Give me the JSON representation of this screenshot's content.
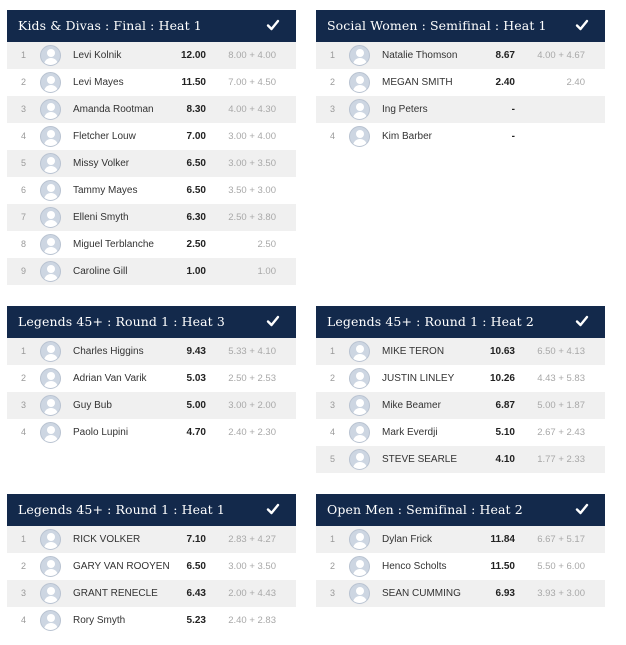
{
  "heats": [
    {
      "title": "Kids & Divas : Final : Heat 1",
      "rows": [
        {
          "pos": "1",
          "name": "Levi Kolnik",
          "score": "12.00",
          "detail": "8.00 + 4.00"
        },
        {
          "pos": "2",
          "name": "Levi Mayes",
          "score": "11.50",
          "detail": "7.00 + 4.50"
        },
        {
          "pos": "3",
          "name": "Amanda Rootman",
          "score": "8.30",
          "detail": "4.00 + 4.30"
        },
        {
          "pos": "4",
          "name": "Fletcher Louw",
          "score": "7.00",
          "detail": "3.00 + 4.00"
        },
        {
          "pos": "5",
          "name": "Missy Volker",
          "score": "6.50",
          "detail": "3.00 + 3.50"
        },
        {
          "pos": "6",
          "name": "Tammy Mayes",
          "score": "6.50",
          "detail": "3.50 + 3.00"
        },
        {
          "pos": "7",
          "name": "Elleni Smyth",
          "score": "6.30",
          "detail": "2.50 + 3.80"
        },
        {
          "pos": "8",
          "name": "Miguel Terblanche",
          "score": "2.50",
          "detail": "2.50"
        },
        {
          "pos": "9",
          "name": "Caroline Gill",
          "score": "1.00",
          "detail": "1.00"
        }
      ]
    },
    {
      "title": "Social Women : Semifinal : Heat 1",
      "rows": [
        {
          "pos": "1",
          "name": "Natalie Thomson",
          "score": "8.67",
          "detail": "4.00 + 4.67"
        },
        {
          "pos": "2",
          "name": "MEGAN SMITH",
          "score": "2.40",
          "detail": "2.40"
        },
        {
          "pos": "3",
          "name": "Ing Peters",
          "score": "-",
          "detail": ""
        },
        {
          "pos": "4",
          "name": "Kim Barber",
          "score": "-",
          "detail": ""
        }
      ]
    },
    {
      "title": "Legends 45+ : Round 1 : Heat 3",
      "rows": [
        {
          "pos": "1",
          "name": "Charles Higgins",
          "score": "9.43",
          "detail": "5.33 + 4.10"
        },
        {
          "pos": "2",
          "name": "Adrian Van Varik",
          "score": "5.03",
          "detail": "2.50 + 2.53"
        },
        {
          "pos": "3",
          "name": "Guy Bub",
          "score": "5.00",
          "detail": "3.00 + 2.00"
        },
        {
          "pos": "4",
          "name": "Paolo Lupini",
          "score": "4.70",
          "detail": "2.40 + 2.30"
        }
      ]
    },
    {
      "title": "Legends 45+ : Round 1 : Heat 2",
      "rows": [
        {
          "pos": "1",
          "name": "MIKE TERON",
          "score": "10.63",
          "detail": "6.50 + 4.13"
        },
        {
          "pos": "2",
          "name": "JUSTIN LINLEY",
          "score": "10.26",
          "detail": "4.43 + 5.83"
        },
        {
          "pos": "3",
          "name": "Mike Beamer",
          "score": "6.87",
          "detail": "5.00 + 1.87"
        },
        {
          "pos": "4",
          "name": "Mark Everdji",
          "score": "5.10",
          "detail": "2.67 + 2.43"
        },
        {
          "pos": "5",
          "name": "STEVE SEARLE",
          "score": "4.10",
          "detail": "1.77 + 2.33"
        }
      ]
    },
    {
      "title": "Legends 45+ : Round 1 : Heat 1",
      "rows": [
        {
          "pos": "1",
          "name": "RICK VOLKER",
          "score": "7.10",
          "detail": "2.83 + 4.27"
        },
        {
          "pos": "2",
          "name": "GARY VAN ROOYEN",
          "score": "6.50",
          "detail": "3.00 + 3.50"
        },
        {
          "pos": "3",
          "name": "GRANT RENECLE",
          "score": "6.43",
          "detail": "2.00 + 4.43"
        },
        {
          "pos": "4",
          "name": "Rory Smyth",
          "score": "5.23",
          "detail": "2.40 + 2.83"
        }
      ]
    },
    {
      "title": "Open Men : Semifinal : Heat 2",
      "rows": [
        {
          "pos": "1",
          "name": "Dylan Frick",
          "score": "11.84",
          "detail": "6.67 + 5.17"
        },
        {
          "pos": "2",
          "name": "Henco Scholts",
          "score": "11.50",
          "detail": "5.50 + 6.00"
        },
        {
          "pos": "3",
          "name": "SEAN CUMMING",
          "score": "6.93",
          "detail": "3.93 + 3.00"
        }
      ]
    }
  ],
  "icons": {
    "header_check": "check-icon",
    "avatar": "user-avatar-icon"
  },
  "colors": {
    "header_bg": "#13294b",
    "row_alt": "#f0f0f0"
  }
}
